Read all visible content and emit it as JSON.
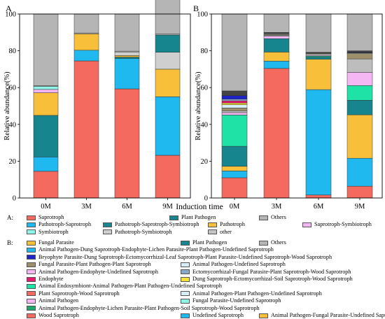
{
  "chart_data": [
    {
      "panel": "A",
      "type": "bar",
      "stacked": true,
      "ylabel": "Relative abundance(%)",
      "ylim": [
        0,
        100
      ],
      "yticks": [
        "0",
        "20",
        "40",
        "60",
        "80",
        "100"
      ],
      "categories": [
        "0M",
        "3M",
        "6M",
        "9M"
      ],
      "series": [
        {
          "name": "Saprotroph",
          "color": "#F46A5E",
          "values": [
            14.5,
            74.5,
            59.3,
            23.2
          ]
        },
        {
          "name": "Pathotroph-Saprotroph",
          "color": "#1FB9F0",
          "values": [
            7.8,
            5.8,
            16.5,
            31.8
          ]
        },
        {
          "name": "Pathotroph-Saprotroph-Symbiotroph",
          "color": "#17858E",
          "values": [
            22.6,
            0.0,
            0.8,
            0.0
          ]
        },
        {
          "name": "Pathotroph",
          "color": "#F8C03A",
          "values": [
            12.3,
            8.9,
            0.8,
            15.0
          ]
        },
        {
          "name": "Saprotroph-Symbiotroph",
          "color": "#F4B7F4",
          "values": [
            1.8,
            0.0,
            0.0,
            0.0
          ]
        },
        {
          "name": "Symbiotroph",
          "color": "#8FF5E9",
          "values": [
            1.7,
            0.0,
            0.0,
            0.0
          ]
        },
        {
          "name": "Pathotroph-Symbiotroph",
          "color": "#CFCFCF",
          "values": [
            0.0,
            0.0,
            1.8,
            9.2
          ]
        },
        {
          "name": "Plant Pathogen",
          "color": "#17858E",
          "values": [
            0.0,
            0.0,
            0.0,
            9.4
          ]
        },
        {
          "name": "other",
          "color": "#C4C4C4",
          "values": [
            0.3,
            0.5,
            0.6,
            0.5
          ]
        },
        {
          "name": "Others",
          "color": "#B5B5B5",
          "values": [
            39.0,
            10.3,
            20.2,
            20.9
          ]
        }
      ]
    },
    {
      "panel": "B",
      "type": "bar",
      "stacked": true,
      "ylabel": "Relative abundance(%)",
      "ylim": [
        0,
        100
      ],
      "yticks": [
        "0",
        "20",
        "40",
        "60",
        "80",
        "100"
      ],
      "categories": [
        "0M",
        "3M",
        "6M",
        "9M"
      ],
      "series": [
        {
          "name": "Wood Saprotroph",
          "color": "#F46A5E",
          "values": [
            11.0,
            70.4,
            1.6,
            6.4
          ]
        },
        {
          "name": "Undefined Saprotroph",
          "color": "#1FB9F0",
          "values": [
            3.7,
            4.0,
            57.3,
            15.2
          ]
        },
        {
          "name": "Animal Pathogen-Fungal Parasite-Undefined Saprotroph",
          "color": "#F8C03A",
          "values": [
            2.5,
            4.9,
            16.5,
            23.6
          ]
        },
        {
          "name": "Plant Pathogen",
          "color": "#17858E",
          "values": [
            10.9,
            7.3,
            1.2,
            7.9
          ]
        },
        {
          "name": "Animal Endosymbiont-Animal Pathogen-Plant Pathogen-Undefined Saprotroph",
          "color": "#1FE3A6",
          "values": [
            17.0,
            0.0,
            0.5,
            8.0
          ]
        },
        {
          "name": "Animal Pathogen",
          "color": "#F4B7F4",
          "values": [
            1.3,
            1.4,
            0.4,
            7.2
          ]
        },
        {
          "name": "Animal Pathogen-Dung Saprotroph-Endophyte-Lichen Parasite-Plant Pathogen-Undefined Saprotroph",
          "color": "#BDBDBD",
          "values": [
            1.0,
            0.5,
            0.8,
            7.3
          ]
        },
        {
          "name": "Fungal Parasite-Plant Pathogen-Plant Saprotroph",
          "color": "#9C8F6A",
          "values": [
            1.5,
            0.4,
            0.3,
            2.9
          ]
        },
        {
          "name": "Animal Pathogen-Undefined Saprotroph",
          "color": "#D7EEF9",
          "values": [
            1.8,
            0.3,
            0.2,
            0.3
          ]
        },
        {
          "name": "Dung Saprotroph-Ectomycorrhizal-Soil Saprotroph-Wood Saprotroph",
          "color": "#F5E33A",
          "values": [
            0.9,
            0.0,
            0.0,
            0.2
          ]
        },
        {
          "name": "Endophyte",
          "color": "#E8176F",
          "values": [
            1.2,
            0.0,
            0.0,
            0.0
          ]
        },
        {
          "name": "Ectomycorrhizal-Fungal Parasite-Plant Saprotroph-Wood Saprotroph",
          "color": "#8AA8C9",
          "values": [
            0.9,
            0.0,
            0.0,
            0.0
          ]
        },
        {
          "name": "Bryophyte Parasite-Dung Saprotroph-Ectomycorrhizal-Leaf Saprotroph-Plant Parasite-Undefined Saprotroph-Wood Saprotroph",
          "color": "#1D23C8",
          "values": [
            1.9,
            0.0,
            0.0,
            0.3
          ]
        },
        {
          "name": "other",
          "color": "#444444",
          "values": [
            2.6,
            0.8,
            0.4,
            0.7
          ]
        },
        {
          "name": "Others",
          "color": "#B5B5B5",
          "values": [
            41.8,
            10.0,
            20.8,
            20.0
          ]
        }
      ]
    }
  ],
  "xaxis_title": "Induction time",
  "legend_A": {
    "label": "A:",
    "rows": [
      [
        {
          "name": "Saprotroph",
          "color": "#F46A5E"
        },
        {
          "name": "Plant Pathogen",
          "color": "#17858E"
        },
        {
          "name": "Others",
          "color": "#B5B5B5"
        }
      ],
      [
        {
          "name": "Pathotroph-Saprotroph",
          "color": "#1FB9F0"
        },
        {
          "name": "Pathotroph-Saprotroph-Symbiotroph",
          "color": "#17858E"
        },
        {
          "name": "Pathotroph",
          "color": "#F8C03A"
        },
        {
          "name": "Saprotroph-Symbiotroph",
          "color": "#F4B7F4"
        }
      ],
      [
        {
          "name": "Symbiotroph",
          "color": "#8FF5E9"
        },
        {
          "name": "Pathotroph-Symbiotroph",
          "color": "#CFCFCF"
        },
        {
          "name": "other",
          "color": "#C4C4C4"
        }
      ]
    ]
  },
  "legend_B": {
    "label": "B:",
    "rows": [
      [
        {
          "name": "Fungal Parasite",
          "color": "#F8C03A"
        },
        {
          "name": "Plant Pathogen",
          "color": "#17858E"
        },
        {
          "name": "Others",
          "color": "#B5B5B5"
        }
      ],
      [
        {
          "name": "Animal Pathogen-Dung Saprotroph-Endophyte-Lichen Parasite-Plant Pathogen-Undefined Saprotroph",
          "color": "#1FB9F0"
        }
      ],
      [
        {
          "name": "Bryophyte Parasite-Dung Saprotroph-Ectomycorrhizal-Leaf Saprotroph-Plant Parasite-Undefined Saprotroph-Wood Saprotroph",
          "color": "#1D23C8"
        }
      ],
      [
        {
          "name": "Fungal Parasite-Plant Pathogen-Plant Saprotroph",
          "color": "#9C8F6A"
        },
        {
          "name": "Animal Pathogen-Undefined Saprotroph",
          "color": "#D7EEF9"
        }
      ],
      [
        {
          "name": "Animal Pathogen-Endophyte-Undefined Saprotroph",
          "color": "#F4B7F4"
        },
        {
          "name": "Ectomycorrhizal-Fungal Parasite-Plant Saprotroph-Wood Saprotroph",
          "color": "#8AA8C9"
        }
      ],
      [
        {
          "name": "Endophyte",
          "color": "#E8176F"
        },
        {
          "name": "Dung Saprotroph-Ectomycorrhizal-Soil Saprotroph-Wood Saprotroph",
          "color": "#F5E33A"
        }
      ],
      [
        {
          "name": "Animal Endosymbiont-Animal Pathogen-Plant Pathogen-Undefined Saprotroph",
          "color": "#1FE3A6"
        }
      ],
      [
        {
          "name": "Plant Saprotroph-Wood Saprotroph",
          "color": "#F46A5E"
        },
        {
          "name": "Animal Pathogen-Plant Pathogen-Undefined Saprotroph",
          "color": "#D7EEF9"
        }
      ],
      [
        {
          "name": "Animal Pathogen",
          "color": "#F4B7F4"
        },
        {
          "name": "Fungal Parasite-Undefined Saprotroph",
          "color": "#8FF5E9"
        }
      ],
      [
        {
          "name": "Animal Pathogen-Endophyte-Lichen Parasite-Plant Pathogen-Soil Saprotroph-Wood Saprotroph",
          "color": "#1FA86A"
        }
      ],
      [
        {
          "name": "Wood Saprotroph",
          "color": "#F46A5E"
        },
        {
          "name": "Undefined Saprotroph",
          "color": "#1FB9F0"
        },
        {
          "name": "Animal Pathogen-Fungal Parasite-Undefined Saprotroph",
          "color": "#F8C03A"
        }
      ]
    ]
  }
}
